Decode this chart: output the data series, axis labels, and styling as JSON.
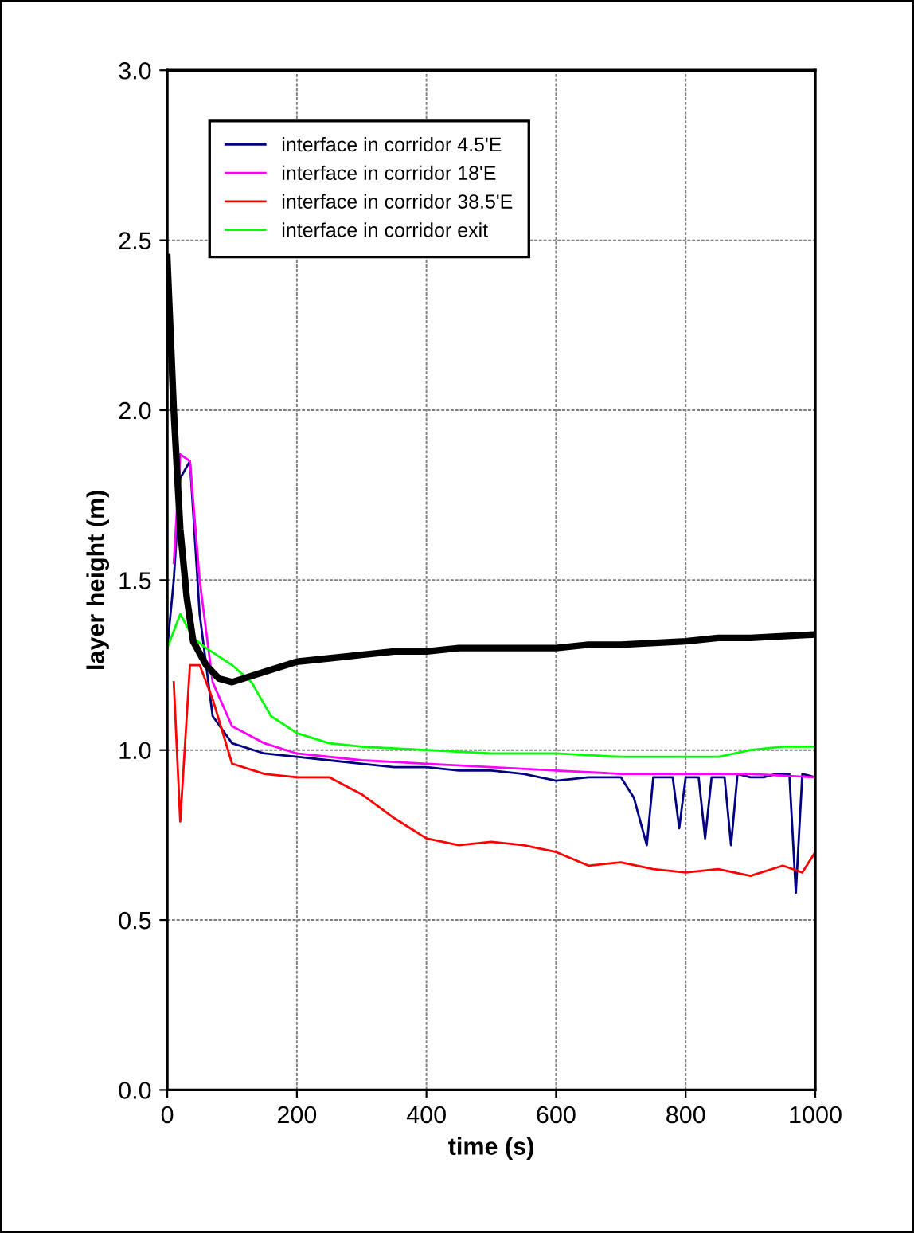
{
  "chart_data": {
    "type": "line",
    "xlabel": "time (s)",
    "ylabel": "layer height (m)",
    "xlim": [
      0,
      1000
    ],
    "ylim": [
      0,
      3.0
    ],
    "xticks": [
      0,
      200,
      400,
      600,
      800,
      1000
    ],
    "yticks": [
      {
        "value": 0,
        "label": "0.0"
      },
      {
        "value": 0.5,
        "label": "0.5"
      },
      {
        "value": 1.0,
        "label": "1.0"
      },
      {
        "value": 1.5,
        "label": "1.5"
      },
      {
        "value": 2.0,
        "label": "2.0"
      },
      {
        "value": 2.5,
        "label": "2.5"
      },
      {
        "value": 3.0,
        "label": "3.0"
      }
    ],
    "grid": true,
    "legend": "top left",
    "marker": "none",
    "line_style": "solid",
    "series": [
      {
        "name": "interface in corridor 4.5'E",
        "color": "#000080",
        "x": [
          0,
          10,
          20,
          35,
          50,
          70,
          100,
          150,
          200,
          250,
          300,
          350,
          400,
          450,
          500,
          550,
          600,
          650,
          700,
          720,
          740,
          750,
          780,
          790,
          800,
          820,
          830,
          840,
          860,
          870,
          880,
          900,
          920,
          940,
          960,
          970,
          980,
          1000
        ],
        "values": [
          1.3,
          1.5,
          1.8,
          1.85,
          1.4,
          1.1,
          1.02,
          0.99,
          0.98,
          0.97,
          0.96,
          0.95,
          0.95,
          0.94,
          0.94,
          0.93,
          0.91,
          0.92,
          0.92,
          0.86,
          0.72,
          0.92,
          0.92,
          0.77,
          0.92,
          0.92,
          0.74,
          0.92,
          0.92,
          0.72,
          0.93,
          0.92,
          0.92,
          0.93,
          0.93,
          0.58,
          0.93,
          0.92
        ]
      },
      {
        "name": "interface in corridor 18'E",
        "color": "#ff00ff",
        "x": [
          10,
          20,
          35,
          50,
          70,
          100,
          150,
          200,
          300,
          400,
          500,
          600,
          700,
          800,
          900,
          1000
        ],
        "values": [
          1.55,
          1.87,
          1.85,
          1.5,
          1.2,
          1.07,
          1.02,
          0.99,
          0.97,
          0.96,
          0.95,
          0.94,
          0.93,
          0.93,
          0.93,
          0.92
        ]
      },
      {
        "name": "interface in corridor 38.5'E",
        "color": "#ff0000",
        "x": [
          10,
          20,
          35,
          50,
          70,
          100,
          150,
          200,
          250,
          300,
          350,
          400,
          450,
          500,
          550,
          600,
          650,
          700,
          750,
          800,
          850,
          900,
          950,
          980,
          1000
        ],
        "values": [
          1.2,
          0.79,
          1.25,
          1.25,
          1.15,
          0.96,
          0.93,
          0.92,
          0.92,
          0.87,
          0.8,
          0.74,
          0.72,
          0.73,
          0.72,
          0.7,
          0.66,
          0.67,
          0.65,
          0.64,
          0.65,
          0.63,
          0.66,
          0.64,
          0.7
        ]
      },
      {
        "name": "interface in corridor exit",
        "color": "#00ff00",
        "x": [
          0,
          20,
          40,
          60,
          100,
          130,
          160,
          200,
          250,
          300,
          400,
          500,
          600,
          700,
          800,
          850,
          900,
          950,
          1000
        ],
        "values": [
          1.3,
          1.4,
          1.33,
          1.3,
          1.25,
          1.2,
          1.1,
          1.05,
          1.02,
          1.01,
          1.0,
          0.99,
          0.99,
          0.98,
          0.98,
          0.98,
          1.0,
          1.01,
          1.01
        ]
      },
      {
        "color": "#000000",
        "x": [
          0,
          10,
          20,
          30,
          40,
          60,
          80,
          100,
          150,
          200,
          250,
          300,
          350,
          400,
          450,
          500,
          600,
          650,
          700,
          800,
          850,
          900,
          1000
        ],
        "values": [
          2.45,
          2.0,
          1.65,
          1.45,
          1.32,
          1.25,
          1.21,
          1.2,
          1.23,
          1.26,
          1.27,
          1.28,
          1.29,
          1.29,
          1.3,
          1.3,
          1.3,
          1.31,
          1.31,
          1.32,
          1.33,
          1.33,
          1.34
        ]
      }
    ]
  }
}
